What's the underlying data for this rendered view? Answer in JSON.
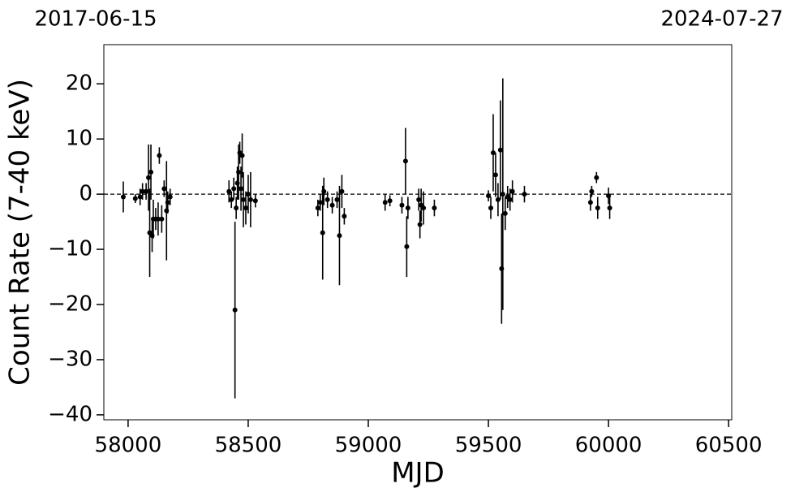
{
  "chart_data": {
    "type": "errorbar",
    "top_labels": [
      "2017-06-15",
      "2024-07-27"
    ],
    "xlabel": "MJD",
    "ylabel": "Count Rate (7-40 keV)",
    "xlim": [
      57899,
      60513
    ],
    "ylim": [
      -40.9,
      27.1
    ],
    "xticks": [
      58000,
      58500,
      59000,
      59500,
      60000,
      60500
    ],
    "yticks": [
      {
        "value": -40,
        "label": "−40"
      },
      {
        "value": -30,
        "label": "−30"
      },
      {
        "value": -20,
        "label": "−20"
      },
      {
        "value": -10,
        "label": "−10"
      },
      0,
      10,
      20
    ],
    "reference_line": 0,
    "color": "#000000",
    "x": [
      57980,
      58030,
      58050,
      58060,
      58075,
      58085,
      58090,
      58095,
      58100,
      58105,
      58115,
      58125,
      58130,
      58140,
      58150,
      58160,
      58165,
      58175,
      58420,
      58430,
      58440,
      58445,
      58450,
      58455,
      58460,
      58465,
      58470,
      58475,
      58480,
      58490,
      58500,
      58510,
      58530,
      58790,
      58800,
      58810,
      58815,
      58830,
      58850,
      58870,
      58880,
      58890,
      58900,
      59070,
      59090,
      59140,
      59155,
      59160,
      59165,
      59210,
      59215,
      59220,
      59230,
      59275,
      59500,
      59510,
      59520,
      59530,
      59540,
      59550,
      59555,
      59560,
      59570,
      59580,
      59590,
      59600,
      59650,
      59925,
      59930,
      59950,
      59955,
      60000,
      60005
    ],
    "values": [
      -0.5,
      -0.8,
      -0.5,
      0.5,
      0.5,
      3,
      -7,
      4,
      -7.5,
      -4.5,
      -4.5,
      -4.5,
      7,
      -4.5,
      1,
      -3,
      -1.5,
      -0.5,
      0.5,
      -1,
      1,
      -21,
      -2.5,
      2,
      4,
      7.5,
      1,
      7,
      -1,
      -2.5,
      0,
      -1,
      -1.2,
      -2.5,
      -1.5,
      -7,
      0.5,
      -1,
      -2,
      -1,
      -7.5,
      0.5,
      -4,
      -1.5,
      -1.2,
      -2,
      6,
      -9.5,
      -2.5,
      -1,
      -5.5,
      -2,
      -2.5,
      -2.5,
      -0.3,
      -2.5,
      7.5,
      3.5,
      -1,
      8,
      -13.5,
      0,
      -3.5,
      -0.5,
      -1,
      0.5,
      0,
      -1.5,
      0.5,
      3,
      -2.5,
      -0.3,
      -2.5
    ],
    "errors": [
      2.8,
      0.8,
      1.5,
      1.5,
      1.5,
      6,
      8,
      5,
      3,
      3.5,
      2,
      3,
      1.5,
      2.5,
      1.5,
      9,
      2,
      1.5,
      2,
      1.5,
      2,
      16,
      2,
      3,
      5,
      2,
      4,
      4,
      5,
      3,
      3.5,
      5,
      1.2,
      1.5,
      1.5,
      8.5,
      2.5,
      1.5,
      1.5,
      1.5,
      9,
      3,
      1.5,
      1.5,
      1,
      1.5,
      6,
      5.5,
      2,
      2,
      2.5,
      3,
      3,
      1.5,
      1,
      2,
      7,
      4,
      3,
      9,
      10,
      21,
      3,
      2,
      2,
      2,
      1.5,
      1.5,
      1,
      1,
      2,
      1.5,
      2
    ]
  }
}
